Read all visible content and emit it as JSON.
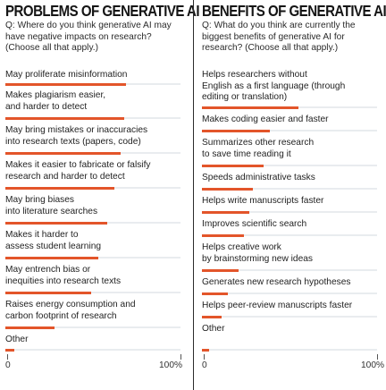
{
  "chart_data": [
    {
      "type": "bar",
      "title": "PROBLEMS OF GENERATIVE AI",
      "subtitle": "Q: Where do you think generative AI may have negative impacts on research? (Choose all that apply.)",
      "categories": [
        "May proliferate misinformation",
        "Makes plagiarism easier,\nand harder to detect",
        "May bring mistakes or inaccuracies\ninto research texts (papers, code)",
        "Makes it easier to fabricate or falsify\nresearch and harder to detect",
        "May bring biases\ninto literature searches",
        "Makes it harder to\nassess student learning",
        "May entrench bias or\ninequities into research texts",
        "Raises energy consumption and\ncarbon footprint of research",
        "Other"
      ],
      "values": [
        69,
        68,
        66,
        62,
        58,
        53,
        49,
        28,
        5
      ],
      "ylim": [
        0,
        100
      ],
      "axis_labels": [
        "0",
        "100%"
      ]
    },
    {
      "type": "bar",
      "title": "BENEFITS OF GENERATIVE AI",
      "subtitle": "Q: What do you think are currently the biggest benefits of generative AI for research? (Choose all that apply.)",
      "categories": [
        "Helps researchers without\nEnglish as a first language (through\nediting or translation)",
        "Makes coding easier and faster",
        "Summarizes other research\nto save time reading it",
        "Speeds administrative tasks",
        "Helps write manuscripts faster",
        "Improves scientific search",
        "Helps creative work\nby brainstorming new ideas",
        "Generates new research hypotheses",
        "Helps peer-review manuscripts faster",
        "Other"
      ],
      "values": [
        55,
        39,
        35,
        29,
        27,
        24,
        21,
        15,
        11,
        4
      ],
      "ylim": [
        0,
        100
      ],
      "axis_labels": [
        "0",
        "100%"
      ]
    }
  ],
  "colors": {
    "bar": "#e3552a",
    "track": "#e9ecef",
    "divider": "#2b2b2b"
  }
}
